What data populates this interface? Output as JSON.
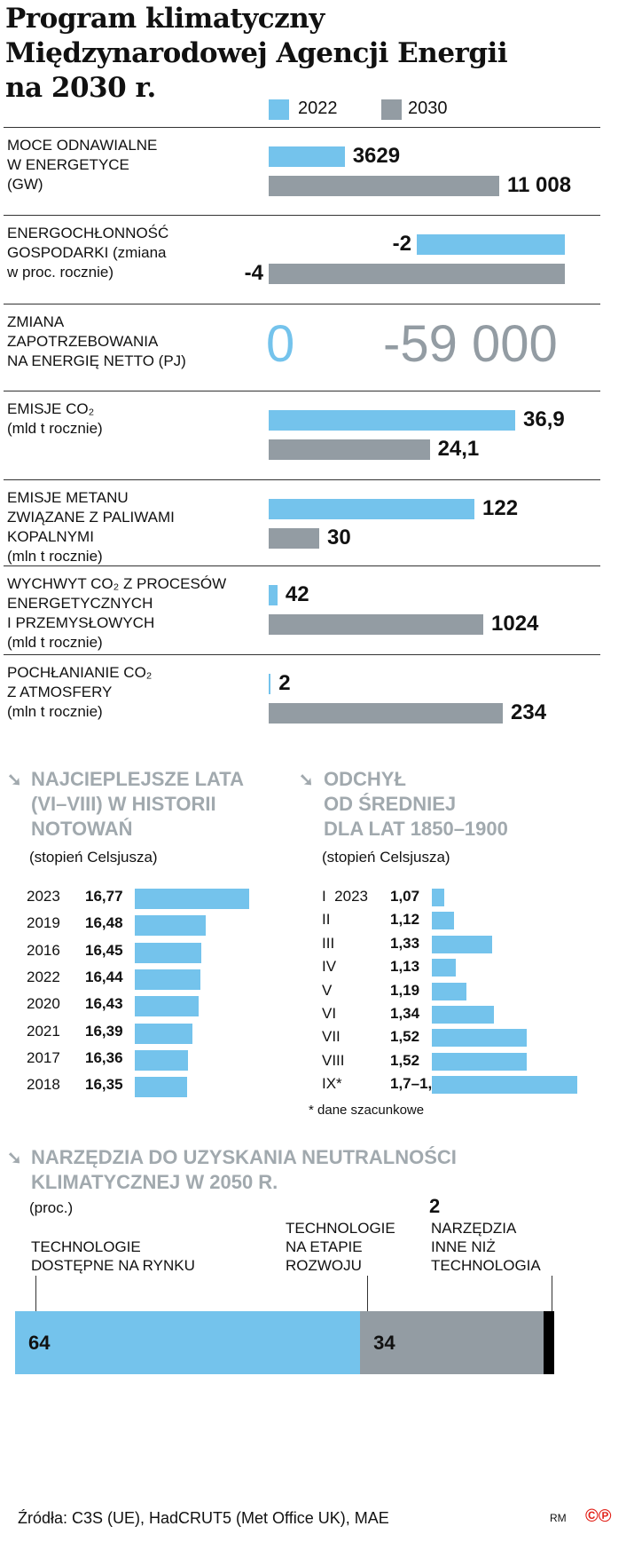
{
  "title": "Program klimatyczny\nMiędzynarodowej Agencji Energii\nna 2030 r.",
  "colors": {
    "blue": "#74c3ec",
    "gray": "#939ca3",
    "black": "#000000",
    "heading": "#a1a9ae",
    "logo": "#e2231a"
  },
  "chart_data": [
    {
      "type": "bar",
      "legend": [
        "2022",
        "2030"
      ],
      "legend_placement": "top-right",
      "rows": [
        {
          "label": "MOCE ODNAWIALNE\nW ENERGETYCE\n(GW)",
          "values": [
            3629,
            11008
          ],
          "labels": [
            "3629",
            "11 008"
          ]
        },
        {
          "label": "ENERGOCHŁONNOŚĆ\nGOSPODARKI (zmiana\nw proc. rocznie)",
          "values": [
            -2,
            -4
          ],
          "labels": [
            "-2",
            "-4"
          ]
        },
        {
          "label": "ZMIANA\nZAPOTRZEBOWANIA\nNA ENERGIĘ NETTO (PJ)",
          "values": [
            0,
            -59000
          ],
          "labels": [
            "0",
            "-59 000"
          ],
          "display": "numbers"
        },
        {
          "label": "EMISJE CO₂\n(mld t rocznie)",
          "values": [
            36.9,
            24.1
          ],
          "labels": [
            "36,9",
            "24,1"
          ]
        },
        {
          "label": "EMISJE METANU\nZWIĄZANE Z PALIWAMI\nKOPALNYMI\n(mln t rocznie)",
          "values": [
            122,
            30
          ],
          "labels": [
            "122",
            "30"
          ]
        },
        {
          "label": "WYCHWYT CO₂ Z PROCESÓW\nENERGETYCZNYCH\nI PRZEMYSŁOWYCH\n(mld t rocznie)",
          "values": [
            42,
            1024
          ],
          "labels": [
            "42",
            "1024"
          ]
        },
        {
          "label": "POCHŁANIANIE CO₂\nZ ATMOSFERY\n(mln t rocznie)",
          "values": [
            2,
            234
          ],
          "labels": [
            "2",
            "234"
          ]
        }
      ]
    },
    {
      "type": "bar",
      "title": "NAJCIEPLEJSZE LATA\n(VI–VIII) W HISTORII\nNOTOWAŃ",
      "subtitle": "(stopień Celsjusza)",
      "categories": [
        "2023",
        "2019",
        "2016",
        "2022",
        "2020",
        "2021",
        "2017",
        "2018"
      ],
      "values": [
        16.77,
        16.48,
        16.45,
        16.44,
        16.43,
        16.39,
        16.36,
        16.35
      ],
      "labels": [
        "16,77",
        "16,48",
        "16,45",
        "16,44",
        "16,43",
        "16,39",
        "16,36",
        "16,35"
      ],
      "xlim": [
        16.0,
        16.77
      ]
    },
    {
      "type": "bar",
      "title": "ODCHYŁ\nOD ŚREDNIEJ\nDLA LAT 1850–1900",
      "subtitle": "(stopień Celsjusza)",
      "categories": [
        "I  2023",
        "II",
        "III",
        "IV",
        "V",
        "VI",
        "VII",
        "VIII",
        "IX*"
      ],
      "values": [
        1.07,
        1.12,
        1.33,
        1.13,
        1.19,
        1.34,
        1.52,
        1.52,
        1.8
      ],
      "labels": [
        "1,07",
        "1,12",
        "1,33",
        "1,13",
        "1,19",
        "1,34",
        "1,52",
        "1,52",
        "1,7–1,8"
      ],
      "xlim": [
        1.0,
        1.8
      ],
      "footnote": "* dane szacunkowe"
    },
    {
      "type": "bar",
      "stacked": true,
      "title": "NARZĘDZIA DO UZYSKANIA NEUTRALNOŚCI\nKLIMATYCZNEJ W 2050 R.",
      "subtitle": "(proc.)",
      "segments": [
        {
          "name": "TECHNOLOGIE\nDOSTĘPNE NA RYNKU",
          "value": 64,
          "label": "64"
        },
        {
          "name": "TECHNOLOGIE\nNA ETAPIE\nROZWOJU",
          "value": 34,
          "label": "34"
        },
        {
          "name": "NARZĘDZIA\nINNE NIŻ\nTECHNOLOGIA",
          "value": 2,
          "label": "2"
        }
      ]
    }
  ],
  "footer": {
    "sources": "Źródła: C3S (UE), HadCRUT5 (Met Office UK), MAE",
    "credit": "RM",
    "logo": "©℗"
  }
}
